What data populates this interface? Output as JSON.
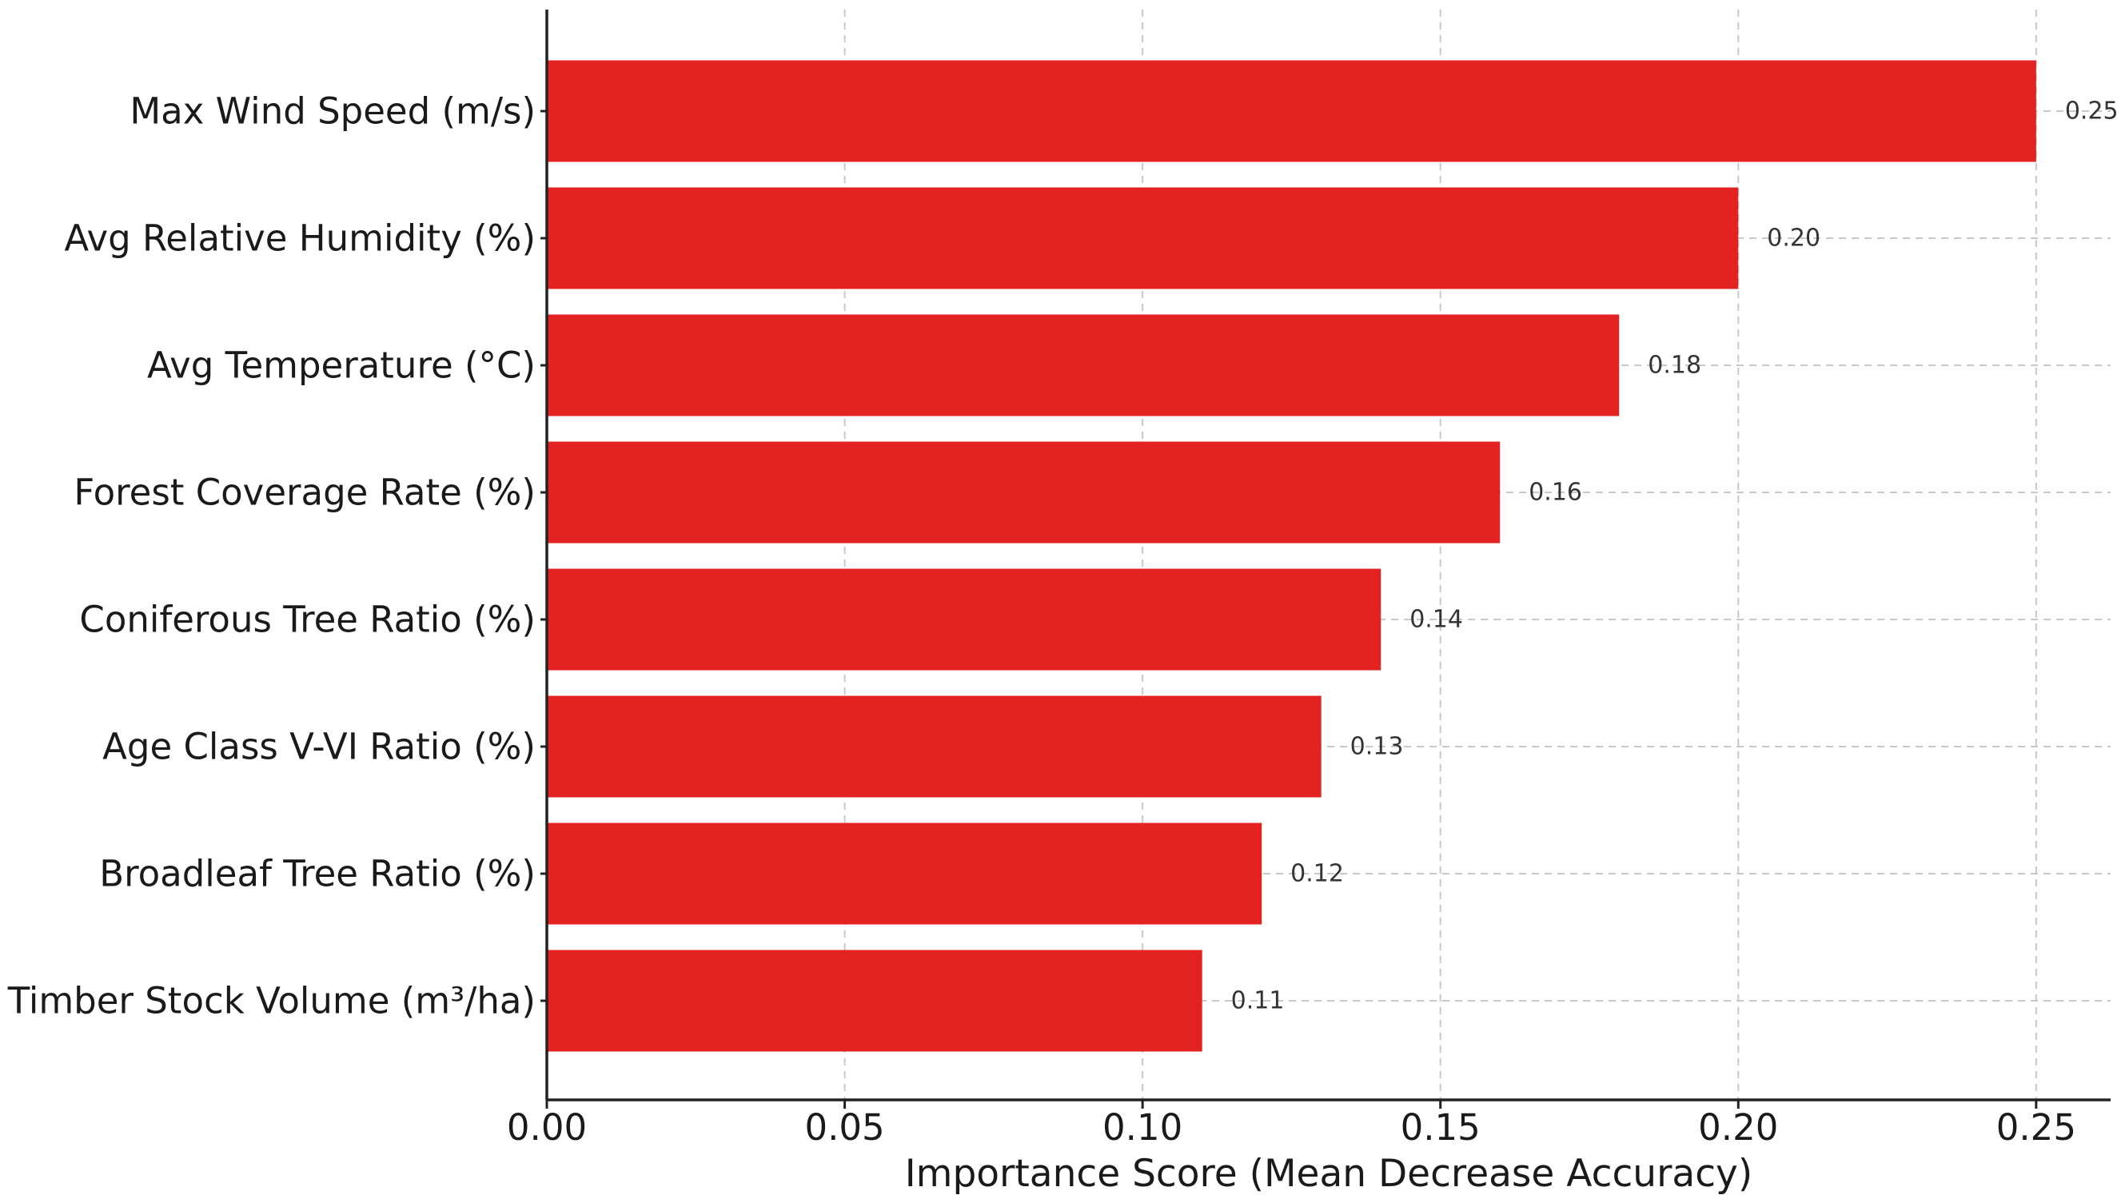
{
  "chart_data": {
    "type": "bar",
    "orientation": "horizontal",
    "title": "",
    "xlabel": "Importance Score (Mean Decrease Accuracy)",
    "ylabel": "",
    "categories": [
      "Max Wind Speed (m/s)",
      "Avg Relative Humidity (%)",
      "Avg Temperature (°C)",
      "Forest Coverage Rate (%)",
      "Coniferous Tree Ratio (%)",
      "Age Class V-VI Ratio (%)",
      "Broadleaf Tree Ratio (%)",
      "Timber Stock Volume (m³/ha)"
    ],
    "values": [
      0.25,
      0.2,
      0.18,
      0.16,
      0.14,
      0.13,
      0.12,
      0.11
    ],
    "data_labels": [
      "0.25",
      "0.20",
      "0.18",
      "0.16",
      "0.14",
      "0.13",
      "0.12",
      "0.11"
    ],
    "x_ticks": [
      0.0,
      0.05,
      0.1,
      0.15,
      0.2,
      0.25
    ],
    "x_tick_labels": [
      "0.00",
      "0.05",
      "0.10",
      "0.15",
      "0.20",
      "0.25"
    ],
    "xlim": [
      0.0,
      0.2625
    ],
    "grid": true,
    "legend": "none",
    "bar_color": "#e32222"
  }
}
